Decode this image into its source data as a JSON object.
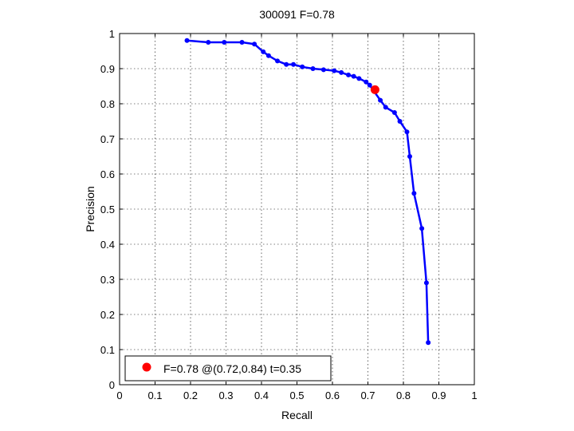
{
  "chart_data": {
    "type": "line",
    "title": "300091 F=0.78",
    "xlabel": "Recall",
    "ylabel": "Precision",
    "xlim": [
      0,
      1
    ],
    "ylim": [
      0,
      1
    ],
    "grid": true,
    "xticks": [
      "0",
      "0.1",
      "0.2",
      "0.3",
      "0.4",
      "0.5",
      "0.6",
      "0.7",
      "0.8",
      "0.9",
      "1"
    ],
    "yticks": [
      "0",
      "0.1",
      "0.2",
      "0.3",
      "0.4",
      "0.5",
      "0.6",
      "0.7",
      "0.8",
      "0.9",
      "1"
    ],
    "series": [
      {
        "color": "#0000ff",
        "marker": "dot",
        "points": [
          [
            0.19,
            0.98
          ],
          [
            0.25,
            0.975
          ],
          [
            0.295,
            0.975
          ],
          [
            0.345,
            0.975
          ],
          [
            0.38,
            0.97
          ],
          [
            0.405,
            0.948
          ],
          [
            0.42,
            0.937
          ],
          [
            0.445,
            0.922
          ],
          [
            0.47,
            0.912
          ],
          [
            0.49,
            0.912
          ],
          [
            0.515,
            0.905
          ],
          [
            0.545,
            0.9
          ],
          [
            0.575,
            0.897
          ],
          [
            0.605,
            0.894
          ],
          [
            0.625,
            0.889
          ],
          [
            0.645,
            0.882
          ],
          [
            0.66,
            0.878
          ],
          [
            0.675,
            0.872
          ],
          [
            0.695,
            0.862
          ],
          [
            0.705,
            0.853
          ],
          [
            0.735,
            0.81
          ],
          [
            0.75,
            0.79
          ],
          [
            0.775,
            0.775
          ],
          [
            0.79,
            0.75
          ],
          [
            0.81,
            0.72
          ],
          [
            0.818,
            0.65
          ],
          [
            0.83,
            0.545
          ],
          [
            0.852,
            0.445
          ],
          [
            0.865,
            0.29
          ],
          [
            0.87,
            0.12
          ]
        ]
      }
    ],
    "highlight": {
      "x": 0.72,
      "y": 0.84,
      "color": "#ff0000"
    },
    "legend": {
      "position": "bottom-left",
      "entries": [
        {
          "label": "F=0.78 @(0.72,0.84) t=0.35",
          "color": "#ff0000",
          "marker": "dot"
        }
      ]
    }
  }
}
